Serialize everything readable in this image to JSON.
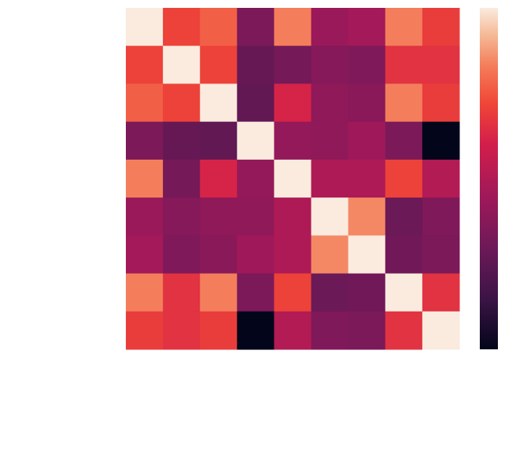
{
  "chart_data": {
    "type": "heatmap",
    "title": "",
    "xlabel": "",
    "ylabel": "",
    "rows": 9,
    "cols": 9,
    "values": [
      [
        1.0,
        0.62,
        0.7,
        0.14,
        0.78,
        0.26,
        0.3,
        0.78,
        0.6
      ],
      [
        0.62,
        1.0,
        0.62,
        0.06,
        0.12,
        0.18,
        0.16,
        0.56,
        0.56
      ],
      [
        0.7,
        0.62,
        1.0,
        0.04,
        0.5,
        0.22,
        0.2,
        0.78,
        0.6
      ],
      [
        0.14,
        0.06,
        0.04,
        1.0,
        0.24,
        0.22,
        0.28,
        0.14,
        -0.3
      ],
      [
        0.78,
        0.12,
        0.5,
        0.24,
        1.0,
        0.34,
        0.34,
        0.62,
        0.36
      ],
      [
        0.26,
        0.18,
        0.22,
        0.22,
        0.34,
        1.0,
        0.8,
        0.08,
        0.16
      ],
      [
        0.3,
        0.16,
        0.2,
        0.28,
        0.34,
        0.8,
        1.0,
        0.1,
        0.14
      ],
      [
        0.78,
        0.56,
        0.78,
        0.14,
        0.62,
        0.08,
        0.1,
        1.0,
        0.56
      ],
      [
        0.6,
        0.56,
        0.6,
        -0.3,
        0.36,
        0.16,
        0.14,
        0.56,
        1.0
      ]
    ],
    "vmin": -0.3,
    "vmax": 1.0,
    "colormap": "rocket",
    "colorbar": true,
    "grid": false
  }
}
